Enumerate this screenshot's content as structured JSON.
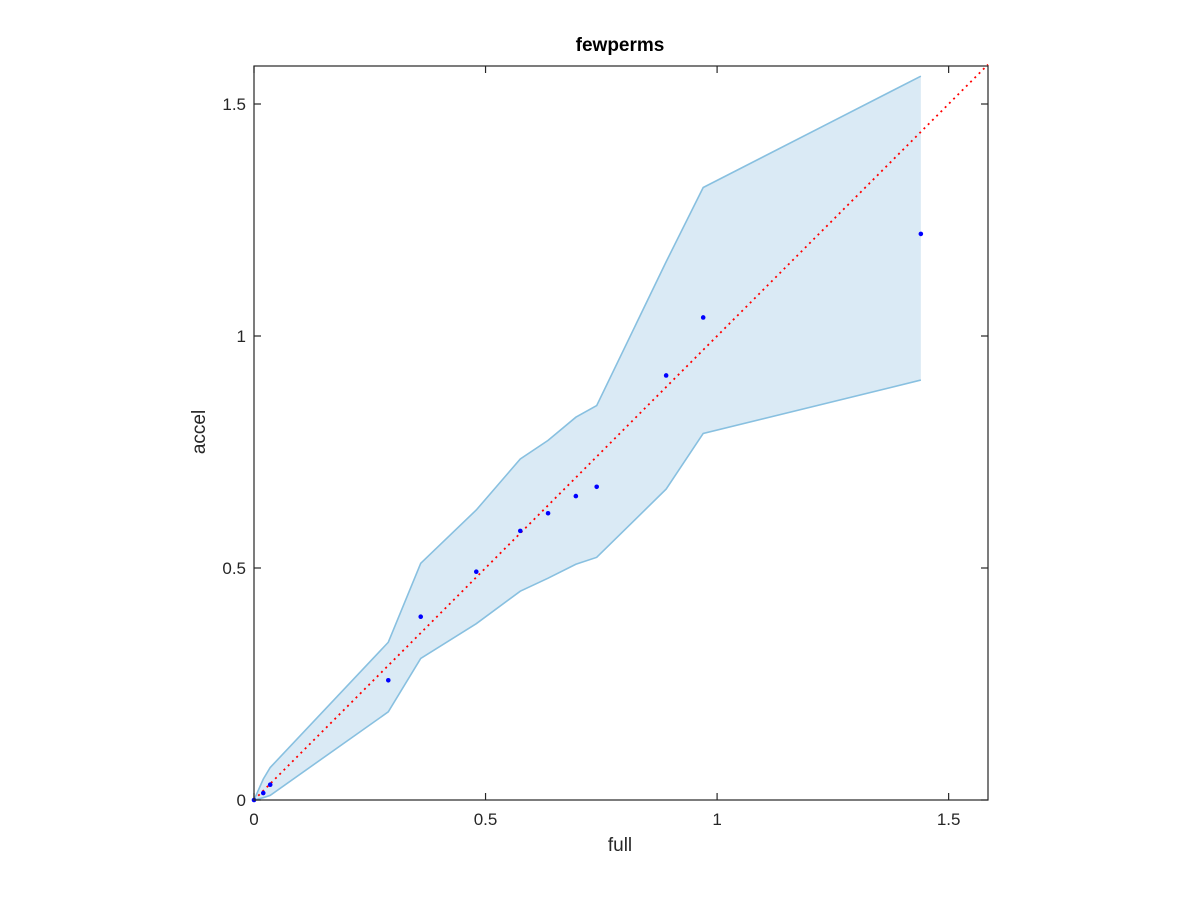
{
  "chart_data": {
    "type": "scatter",
    "title": "fewperms",
    "xlabel": "full",
    "ylabel": "accel",
    "xlim": [
      0,
      1.585
    ],
    "ylim": [
      0,
      1.5
    ],
    "xticks": [
      0,
      0.5,
      1,
      1.5
    ],
    "yticks": [
      0,
      0.5,
      1,
      1.5
    ],
    "xtick_labels": [
      "0",
      "0.5",
      "1",
      "1.5"
    ],
    "ytick_labels": [
      "0",
      "0.5",
      "1",
      "1.5"
    ],
    "grid": false,
    "colors": {
      "points": "#0000ff",
      "band_fill": "#daeaf5",
      "band_edge": "#88c0e0",
      "reference_line": "#ff0000",
      "axes": "#262626"
    },
    "points": {
      "x": [
        0.0,
        0.02,
        0.035,
        0.29,
        0.36,
        0.48,
        0.575,
        0.635,
        0.695,
        0.74,
        0.89,
        0.97,
        1.44
      ],
      "y": [
        0.0,
        0.015,
        0.033,
        0.258,
        0.395,
        0.492,
        0.58,
        0.618,
        0.655,
        0.675,
        0.915,
        1.04,
        1.22
      ]
    },
    "band": {
      "x": [
        0.0,
        0.02,
        0.035,
        0.29,
        0.36,
        0.48,
        0.575,
        0.635,
        0.695,
        0.74,
        0.89,
        0.97,
        1.44
      ],
      "upper": [
        0.0,
        0.045,
        0.07,
        0.34,
        0.51,
        0.625,
        0.735,
        0.775,
        0.825,
        0.85,
        1.16,
        1.32,
        1.56
      ],
      "lower": [
        0.0,
        0.005,
        0.01,
        0.19,
        0.305,
        0.38,
        0.45,
        0.478,
        0.508,
        0.523,
        0.67,
        0.79,
        0.905
      ]
    },
    "reference_line": {
      "style": "dotted",
      "x": [
        0,
        1.585
      ],
      "y": [
        0,
        1.585
      ]
    }
  }
}
